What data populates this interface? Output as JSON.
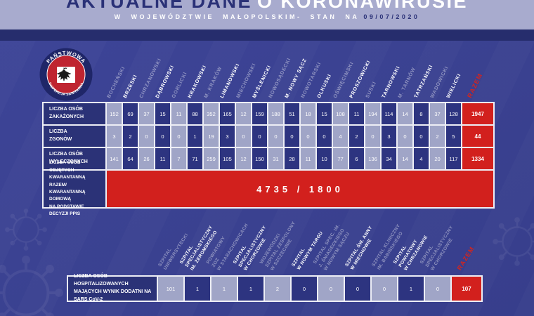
{
  "header": {
    "title_dark": "AKTUALNE DANE",
    "title_light": "O KORONAWIRUSIE",
    "subtitle": "W WOJEWÓDZTWIE MAŁOPOLSKIM- STAN NA",
    "date": "09/07/2020"
  },
  "logo": {
    "top_text": "PAŃSTWOWA",
    "bottom_text": "INSPEKCJA SANITARNA"
  },
  "colors": {
    "accent_red": "#d2201d",
    "navy_cell": "#2d3480",
    "light_cell": "#a0a5c7",
    "header_band": "#a8abce",
    "background": "#3a4190"
  },
  "county_table": {
    "columns": [
      "BOCHEŃSKI",
      "BRZESKI",
      "CHRZANOWSKI",
      "DĄBROWSKI",
      "GORLICKI",
      "KRAKOWSKI",
      "M. KRAKÓW",
      "LIMANOWSKI",
      "MIECHOWSKI",
      "MYŚLENICKI",
      "NOWOSĄDECKI",
      "M. NOWY SĄCZ",
      "NOWOTARSKI",
      "OLKUSKI",
      "OŚWIĘCIMSKI",
      "PROSZOWICKI",
      "SUSKI",
      "TARNOWSKI",
      "M. TARNÓW",
      "TATRZAŃSKI",
      "WADOWICKI",
      "WIELICKI"
    ],
    "total_label": "RAZEM",
    "rows": [
      {
        "label": "LICZBA OSÓB\nZAKAŻONYCH",
        "values": [
          152,
          69,
          37,
          15,
          11,
          88,
          352,
          165,
          12,
          159,
          188,
          51,
          18,
          15,
          108,
          11,
          194,
          114,
          14,
          8,
          37,
          128
        ],
        "total": 1947
      },
      {
        "label": "LICZBA\nZGONÓW",
        "values": [
          3,
          2,
          0,
          0,
          0,
          1,
          19,
          3,
          0,
          0,
          0,
          0,
          0,
          0,
          4,
          2,
          0,
          3,
          0,
          0,
          2,
          5
        ],
        "total": 44
      },
      {
        "label": "LICZBA OSÓB\nWYLECZONYCH",
        "values": [
          141,
          64,
          26,
          11,
          7,
          71,
          259,
          105,
          12,
          150,
          31,
          28,
          11,
          10,
          77,
          6,
          136,
          34,
          14,
          4,
          20,
          117
        ],
        "total": 1334
      }
    ],
    "quarantine_row": {
      "label": "LICZBA OSÓB OBJĘTYCH\nKWARANTANNĄ RAZEM/\nKWARANTANNĄ DOMOWĄ\nNA PODSTAWIE DECYZJI PPIS",
      "value": "4735 / 1800"
    }
  },
  "hospital_table": {
    "columns": [
      "SZPITAL\nUNIWERSYTECKI",
      "SZPITAL\nSPECJALISTYCZNY\nIM. ŻEROMSKIEGO",
      "POWIATOWY\nZOZ\nW STARACHOWICACH",
      "SZPITAL\nSPECJALISTYCZNY\nW CHORZOWIE",
      "WOJEWÓDZKI\nSZPITAL ZESPOLONY\nW SZCZECINIE",
      "SZPITAL\nW NOWYM TARGU",
      "SZPITAL SPEC. IM.\nJ. ŚNIADECKIEGO\nW NOWYM SĄCZU",
      "SZPITAL ŚW. ANNY\nW MIECHOWIE",
      "SZPITAL KLINICZNY\nIM. BABIŃSKIEGO",
      "SZPITAL\nPOWIATOWY\nW CHRZANOWIE",
      "SZPITAL\nSPECJALISTYCZNY\nW CHORZOWIE"
    ],
    "total_label": "RAZEM",
    "row": {
      "label": "LICZBA OSÓB HOSPITALIZOWANYCH\nMAJĄCYCH WYNIK DODATNI NA SARS CoV-2",
      "values": [
        101,
        1,
        1,
        1,
        2,
        0,
        0,
        0,
        0,
        1,
        0
      ],
      "total": 107
    }
  }
}
